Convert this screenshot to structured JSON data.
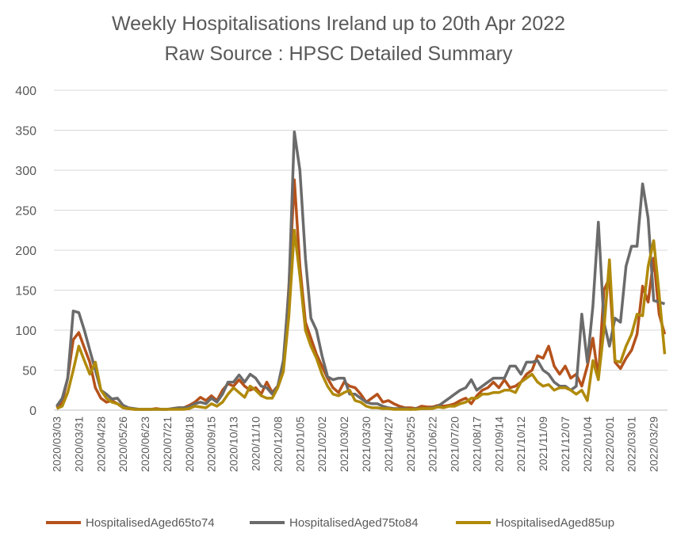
{
  "chart_data": {
    "type": "line",
    "title": "Weekly Hospitalisations Ireland up to 20th Apr 2022",
    "subtitle": "Raw Source : HPSC Detailed Summary",
    "xlabel": "",
    "ylabel": "",
    "ylim": [
      0,
      400
    ],
    "yticks": [
      0,
      50,
      100,
      150,
      200,
      250,
      300,
      350,
      400
    ],
    "grid": true,
    "legend_position": "bottom",
    "x_tick_labels": [
      "2020/03/03",
      "2020/03/31",
      "2020/04/28",
      "2020/05/26",
      "2020/06/23",
      "2020/07/21",
      "2020/08/18",
      "2020/09/15",
      "2020/10/13",
      "2020/11/10",
      "2020/12/08",
      "2021/01/05",
      "2021/02/02",
      "2021/03/02",
      "2021/03/30",
      "2021/04/27",
      "2021/05/25",
      "2021/06/22",
      "2021/07/20",
      "2021/08/17",
      "2021/09/14",
      "2021/10/12",
      "2021/11/09",
      "2021/12/07",
      "2022/01/04",
      "2022/02/01",
      "2022/03/01",
      "2022/03/29"
    ],
    "x_tick_every": 4,
    "series": [
      {
        "name": "HospitalisedAged65to74",
        "color": "#b5521b",
        "values": [
          3,
          10,
          40,
          88,
          97,
          78,
          60,
          28,
          15,
          10,
          12,
          8,
          3,
          2,
          1,
          1,
          1,
          1,
          2,
          1,
          1,
          2,
          3,
          3,
          6,
          10,
          16,
          12,
          18,
          12,
          25,
          33,
          30,
          38,
          30,
          25,
          28,
          20,
          35,
          22,
          30,
          50,
          155,
          288,
          180,
          110,
          90,
          70,
          55,
          40,
          28,
          22,
          35,
          30,
          28,
          20,
          10,
          15,
          20,
          10,
          12,
          8,
          5,
          3,
          3,
          2,
          5,
          4,
          4,
          6,
          5,
          6,
          8,
          12,
          15,
          8,
          18,
          25,
          28,
          35,
          28,
          38,
          28,
          30,
          35,
          45,
          50,
          68,
          65,
          80,
          55,
          45,
          55,
          40,
          45,
          30,
          55,
          90,
          40,
          150,
          165,
          60,
          52,
          65,
          75,
          95,
          155,
          135,
          190,
          120,
          95
        ]
      },
      {
        "name": "HospitalisedAged75to84",
        "color": "#6b6b6b",
        "values": [
          5,
          15,
          40,
          124,
          122,
          100,
          75,
          50,
          25,
          20,
          14,
          15,
          6,
          3,
          2,
          1,
          1,
          1,
          1,
          1,
          1,
          2,
          3,
          3,
          4,
          8,
          10,
          8,
          15,
          10,
          20,
          35,
          35,
          44,
          35,
          45,
          40,
          30,
          28,
          20,
          30,
          62,
          150,
          348,
          300,
          190,
          115,
          100,
          68,
          42,
          38,
          40,
          40,
          20,
          20,
          15,
          10,
          8,
          8,
          5,
          3,
          2,
          2,
          2,
          1,
          2,
          2,
          2,
          3,
          5,
          10,
          15,
          20,
          25,
          28,
          38,
          25,
          30,
          35,
          40,
          40,
          40,
          55,
          55,
          45,
          60,
          60,
          62,
          50,
          45,
          35,
          30,
          30,
          25,
          30,
          120,
          60,
          130,
          235,
          110,
          80,
          115,
          110,
          180,
          205,
          205,
          283,
          240,
          137,
          135,
          133
        ]
      },
      {
        "name": "HospitalisedAged85up",
        "color": "#b08a0a",
        "values": [
          2,
          5,
          22,
          50,
          80,
          62,
          45,
          60,
          25,
          15,
          10,
          8,
          3,
          2,
          1,
          1,
          1,
          1,
          1,
          1,
          1,
          1,
          1,
          1,
          2,
          5,
          4,
          3,
          8,
          5,
          10,
          20,
          28,
          22,
          16,
          30,
          25,
          18,
          15,
          15,
          28,
          48,
          118,
          225,
          168,
          100,
          80,
          65,
          45,
          30,
          20,
          18,
          22,
          25,
          12,
          10,
          5,
          3,
          3,
          2,
          2,
          1,
          1,
          1,
          1,
          1,
          2,
          2,
          2,
          4,
          3,
          5,
          5,
          8,
          10,
          15,
          15,
          20,
          20,
          22,
          22,
          25,
          25,
          22,
          35,
          40,
          45,
          35,
          30,
          32,
          25,
          28,
          28,
          25,
          20,
          25,
          12,
          62,
          38,
          100,
          188,
          62,
          60,
          80,
          95,
          120,
          118,
          180,
          212,
          145,
          70
        ]
      }
    ]
  }
}
